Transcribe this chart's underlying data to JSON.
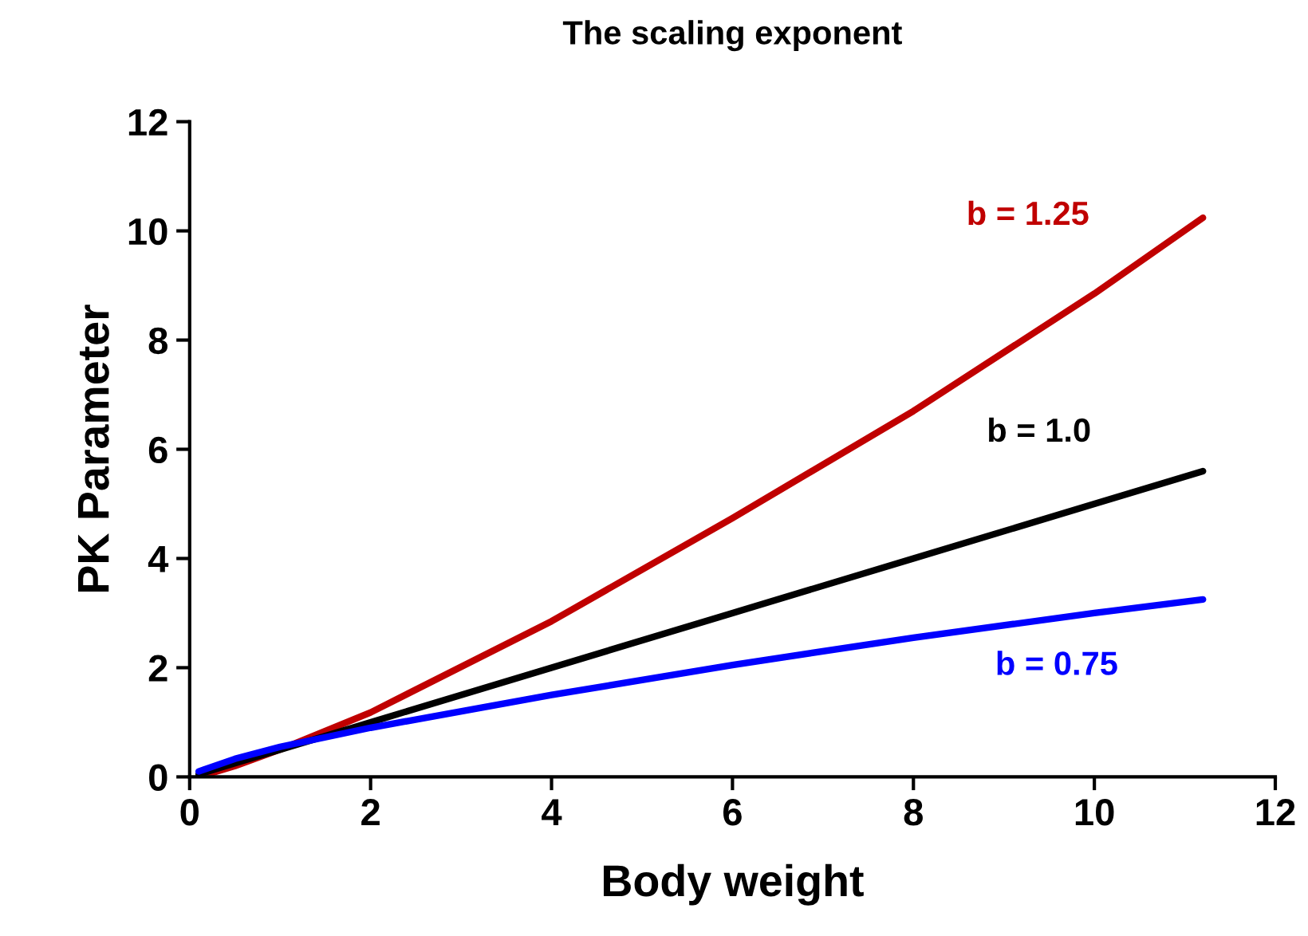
{
  "chart_data": {
    "type": "line",
    "title": "The scaling exponent",
    "xlabel": "Body weight",
    "ylabel": "PK Parameter",
    "xlim": [
      0,
      12
    ],
    "xticks": [
      0,
      2,
      4,
      6,
      8,
      10,
      12
    ],
    "ylim": [
      0,
      12
    ],
    "yticks": [
      0,
      2,
      4,
      6,
      8,
      10,
      12
    ],
    "grid": false,
    "legend": false,
    "marker": "none",
    "line_style": "solid",
    "series": [
      {
        "name": "b = 1.25",
        "color": "#c00000",
        "x": [
          0.1,
          0.5,
          1,
          2,
          4,
          6,
          8,
          10,
          11.2
        ],
        "values": [
          0.0,
          0.2,
          0.5,
          1.18,
          2.85,
          4.74,
          6.7,
          8.85,
          10.24
        ]
      },
      {
        "name": "b = 1.0",
        "color": "#000000",
        "x": [
          0.1,
          0.5,
          1,
          2,
          4,
          6,
          8,
          10,
          11.2
        ],
        "values": [
          0.05,
          0.25,
          0.5,
          1.0,
          2.0,
          3.0,
          4.0,
          5.0,
          5.6
        ]
      },
      {
        "name": "b = 0.75",
        "color": "#0000ff",
        "x": [
          0.1,
          0.5,
          1,
          2,
          4,
          6,
          8,
          10,
          11.2
        ],
        "values": [
          0.1,
          0.33,
          0.55,
          0.9,
          1.5,
          2.05,
          2.55,
          3.0,
          3.25
        ]
      }
    ]
  }
}
